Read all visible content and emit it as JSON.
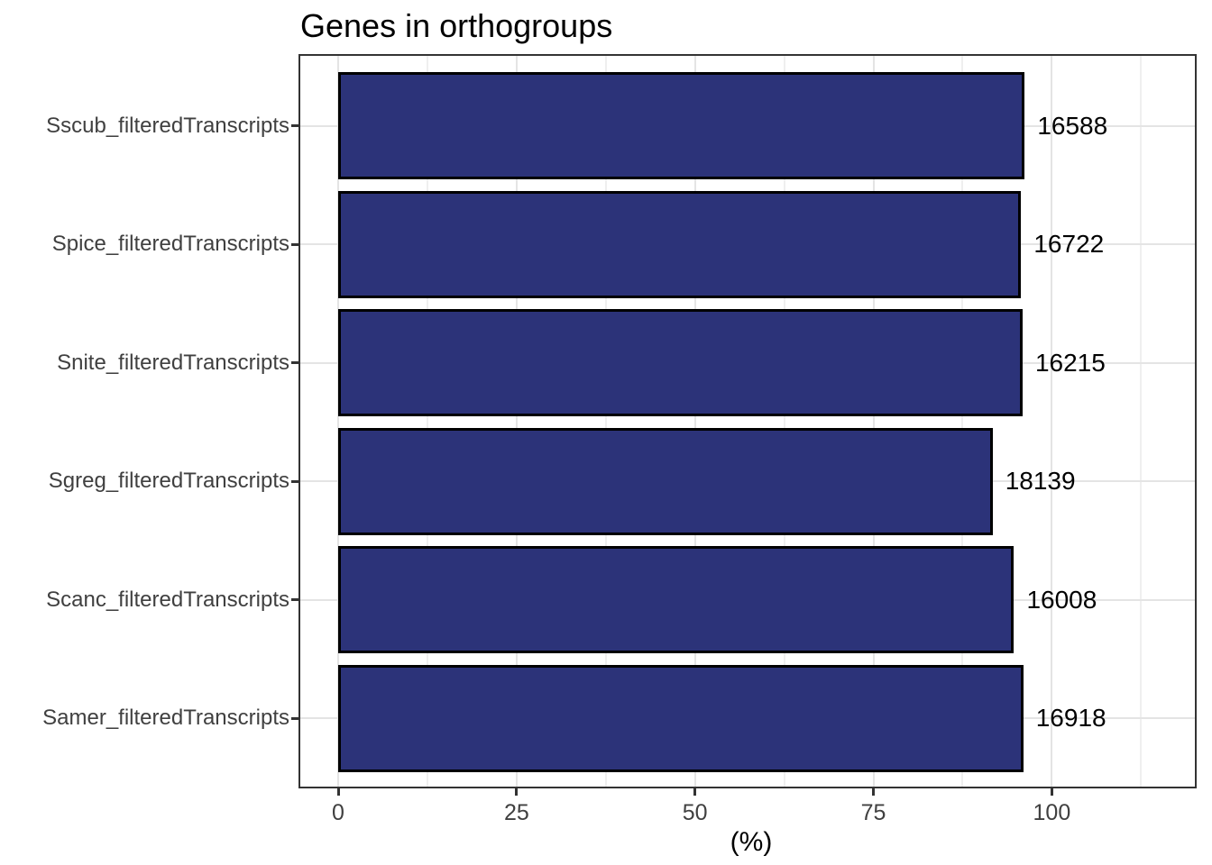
{
  "chart_data": {
    "type": "bar",
    "orientation": "horizontal",
    "title": "Genes in orthogroups",
    "xlabel": "(%)",
    "ylabel": "",
    "categories": [
      "Sscub_filteredTranscripts",
      "Spice_filteredTranscripts",
      "Snite_filteredTranscripts",
      "Sgreg_filteredTranscripts",
      "Scanc_filteredTranscripts",
      "Samer_filteredTranscripts"
    ],
    "values_percent": [
      96.2,
      95.7,
      95.9,
      91.7,
      94.7,
      96.0
    ],
    "bar_labels": [
      "16588",
      "16722",
      "16215",
      "18139",
      "16008",
      "16918"
    ],
    "x_major_ticks": [
      0,
      25,
      50,
      75,
      100
    ],
    "x_minor_ticks": [
      12.5,
      37.5,
      62.5,
      87.5,
      112.5
    ],
    "xlim": [
      -5.6,
      120.4
    ],
    "grid": "on",
    "legend": "none",
    "colors": {
      "bar_fill": "#2c3379",
      "bar_border": "#000000",
      "grid_major": "#e4e4e4",
      "grid_minor": "#efefef",
      "panel_border": "#333333",
      "axis_text": "#404040",
      "title_text": "#000000",
      "background": "#ffffff"
    }
  }
}
